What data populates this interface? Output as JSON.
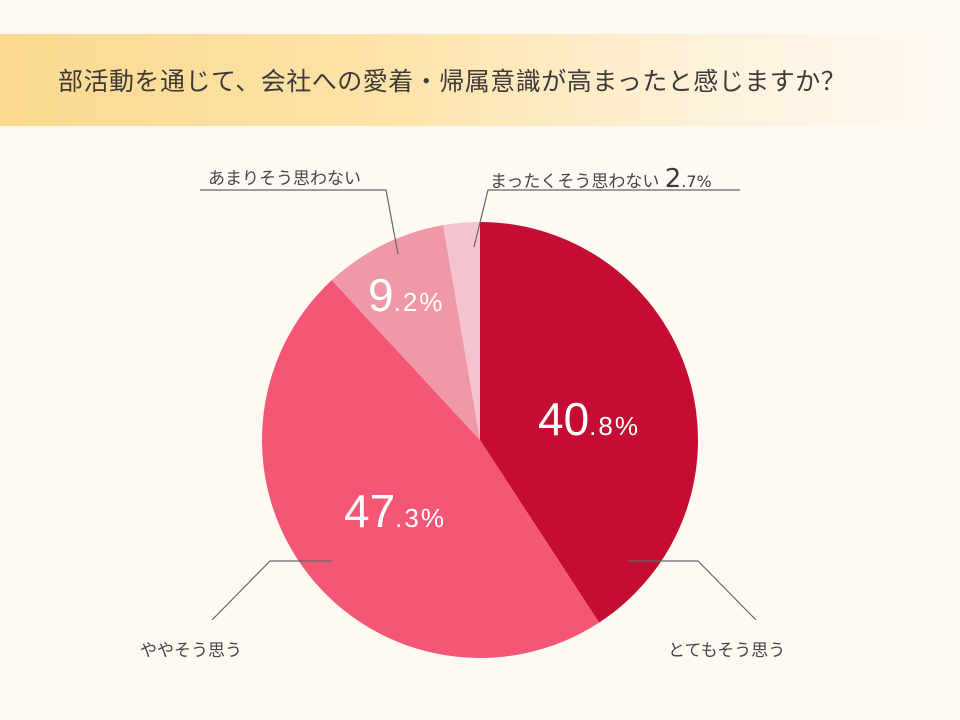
{
  "header": {
    "title": "部活動を通じて、会社への愛着・帰属意識が高まったと感じますか？"
  },
  "chart_data": {
    "type": "pie",
    "title": "部活動を通じて、会社への愛着・帰属意識が高まったと感じますか？",
    "start_angle": "12 o'clock, clockwise",
    "categories": [
      "とてもそう思う",
      "ややそう思う",
      "あまりそう思わない",
      "まったくそう思わない"
    ],
    "values": [
      40.8,
      47.3,
      9.2,
      2.7
    ],
    "unit": "%",
    "colors": [
      "#c50c32",
      "#f45676",
      "#ef98a7",
      "#f4c3d0"
    ],
    "legend": "callout labels with leader lines"
  },
  "labels": {
    "very_much": {
      "text": "とてもそう思う",
      "big": "40",
      "small": ".8%"
    },
    "somewhat": {
      "text": "ややそう思う",
      "big": "47",
      "small": ".3%"
    },
    "not_much": {
      "text": "あまりそう思わない",
      "big": "9",
      "small": ".2%"
    },
    "not_at_all": {
      "text": "まったくそう思わない",
      "big": "2",
      "small": ".7%"
    }
  }
}
